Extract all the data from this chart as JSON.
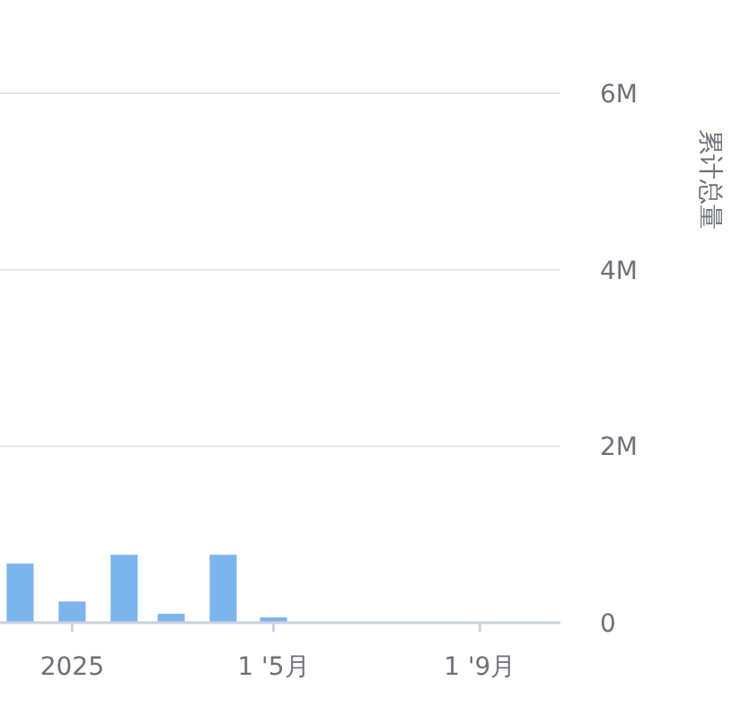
{
  "chart_data": {
    "type": "bar",
    "ylabel": "累计总量",
    "x": [
      "2024-12-01",
      "2025-01-01",
      "2025-02-01",
      "2025-03-01",
      "2025-04-01",
      "2025-05-01"
    ],
    "values": [
      670000,
      240000,
      770000,
      100000,
      770000,
      60000
    ],
    "color": "#7cb5ec",
    "xlim": [
      "2024-11-19",
      "2025-10-19"
    ],
    "xticks": [
      {
        "value": "2025-01-01",
        "label": "2025"
      },
      {
        "value": "2025-05-01",
        "label": "1 '5月"
      },
      {
        "value": "2025-09-01",
        "label": "1 '9月"
      }
    ],
    "ylim": [
      0,
      6000000
    ],
    "yticks": [
      {
        "value": 0,
        "label": "0"
      },
      {
        "value": 2000000,
        "label": "2M"
      },
      {
        "value": 4000000,
        "label": "4M"
      },
      {
        "value": 6000000,
        "label": "6M"
      }
    ],
    "grid": "y"
  }
}
